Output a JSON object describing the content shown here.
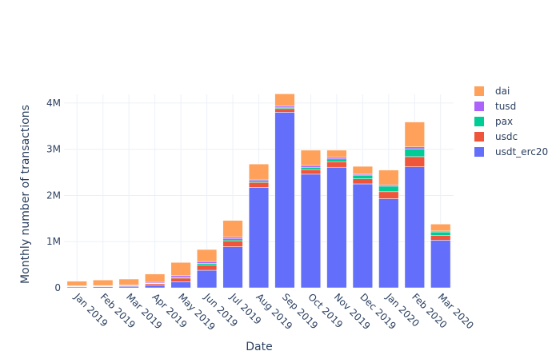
{
  "chart_data": {
    "type": "bar",
    "barmode": "stack",
    "xlabel": "Date",
    "ylabel": "Monthly number of transactions",
    "ylim": [
      0,
      4500000
    ],
    "y_ticks": [
      0,
      1000000,
      2000000,
      3000000,
      4000000
    ],
    "y_tick_labels": [
      "0",
      "1M",
      "2M",
      "3M",
      "4M"
    ],
    "grid": true,
    "legend_position": "top-right",
    "categories": [
      "Jan 2019",
      "Feb 2019",
      "Mar 2019",
      "Apr 2019",
      "May 2019",
      "Jun 2019",
      "Jul 2019",
      "Aug 2019",
      "Sep 2019",
      "Oct 2019",
      "Nov 2019",
      "Dec 2019",
      "Jan 2020",
      "Feb 2020",
      "Mar 2020"
    ],
    "series": [
      {
        "name": "usdt_erc20",
        "color": "#636efa",
        "values": [
          20000,
          25000,
          30000,
          60000,
          130000,
          380000,
          890000,
          2170000,
          3800000,
          2460000,
          2610000,
          2250000,
          1930000,
          2620000,
          1030000
        ]
      },
      {
        "name": "usdc",
        "color": "#ef553b",
        "values": [
          10000,
          10000,
          15000,
          30000,
          80000,
          110000,
          130000,
          110000,
          80000,
          100000,
          120000,
          110000,
          150000,
          220000,
          100000
        ]
      },
      {
        "name": "pax",
        "color": "#00cc96",
        "values": [
          5000,
          5000,
          5000,
          10000,
          20000,
          40000,
          40000,
          40000,
          30000,
          50000,
          60000,
          80000,
          120000,
          170000,
          80000
        ]
      },
      {
        "name": "tusd",
        "color": "#ab63fa",
        "values": [
          10000,
          10000,
          10000,
          20000,
          40000,
          40000,
          40000,
          30000,
          30000,
          40000,
          40000,
          20000,
          30000,
          40000,
          20000
        ]
      },
      {
        "name": "dai",
        "color": "#ffa15a",
        "values": [
          100000,
          120000,
          130000,
          180000,
          280000,
          260000,
          360000,
          330000,
          260000,
          330000,
          150000,
          170000,
          320000,
          540000,
          150000
        ]
      }
    ]
  }
}
